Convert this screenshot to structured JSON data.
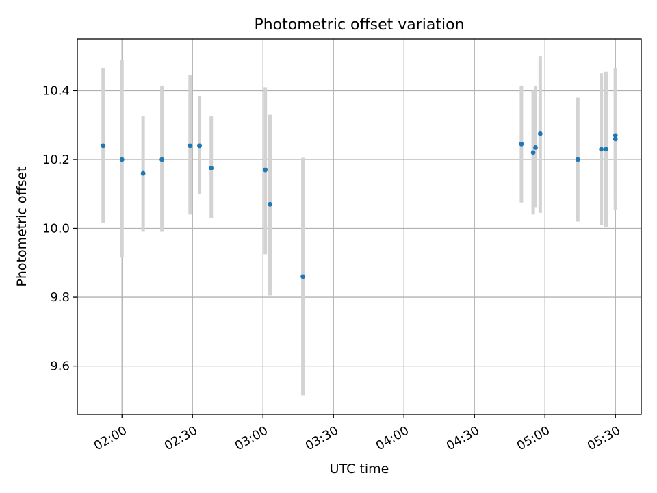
{
  "chart_data": {
    "type": "scatter",
    "title": "Photometric offset variation",
    "xlabel": "UTC time",
    "ylabel": "Photometric offset",
    "xlim": [
      "01:41",
      "05:41"
    ],
    "ylim": [
      9.46,
      10.55
    ],
    "x_ticks": [
      "02:00",
      "02:30",
      "03:00",
      "03:30",
      "04:00",
      "04:30",
      "05:00",
      "05:30"
    ],
    "y_ticks": [
      "9.6",
      "9.8",
      "10.0",
      "10.2",
      "10.4"
    ],
    "grid": true,
    "point_color": "#1f77b4",
    "errorbar_color": "#d3d3d3",
    "points": [
      {
        "x": "01:52",
        "y": 10.24,
        "ymin": 10.015,
        "ymax": 10.465
      },
      {
        "x": "02:00",
        "y": 10.2,
        "ymin": 9.915,
        "ymax": 10.49
      },
      {
        "x": "02:09",
        "y": 10.16,
        "ymin": 9.99,
        "ymax": 10.325
      },
      {
        "x": "02:17",
        "y": 10.2,
        "ymin": 9.99,
        "ymax": 10.415
      },
      {
        "x": "02:29",
        "y": 10.24,
        "ymin": 10.04,
        "ymax": 10.445
      },
      {
        "x": "02:33",
        "y": 10.24,
        "ymin": 10.1,
        "ymax": 10.385
      },
      {
        "x": "02:38",
        "y": 10.175,
        "ymin": 10.03,
        "ymax": 10.325
      },
      {
        "x": "03:01",
        "y": 10.17,
        "ymin": 9.925,
        "ymax": 10.41
      },
      {
        "x": "03:03",
        "y": 10.07,
        "ymin": 9.805,
        "ymax": 10.33
      },
      {
        "x": "03:17",
        "y": 9.86,
        "ymin": 9.515,
        "ymax": 10.205
      },
      {
        "x": "04:50",
        "y": 10.245,
        "ymin": 10.075,
        "ymax": 10.415
      },
      {
        "x": "04:55",
        "y": 10.22,
        "ymin": 10.04,
        "ymax": 10.4
      },
      {
        "x": "04:56",
        "y": 10.235,
        "ymin": 10.06,
        "ymax": 10.415
      },
      {
        "x": "04:58",
        "y": 10.275,
        "ymin": 10.045,
        "ymax": 10.5
      },
      {
        "x": "05:14",
        "y": 10.2,
        "ymin": 10.02,
        "ymax": 10.38
      },
      {
        "x": "05:24",
        "y": 10.23,
        "ymin": 10.01,
        "ymax": 10.45
      },
      {
        "x": "05:26",
        "y": 10.23,
        "ymin": 10.005,
        "ymax": 10.455
      },
      {
        "x": "05:30",
        "y": 10.27,
        "ymin": 10.09,
        "ymax": 10.465
      },
      {
        "x": "05:30",
        "y": 10.26,
        "ymin": 10.055,
        "ymax": 10.46
      }
    ]
  }
}
